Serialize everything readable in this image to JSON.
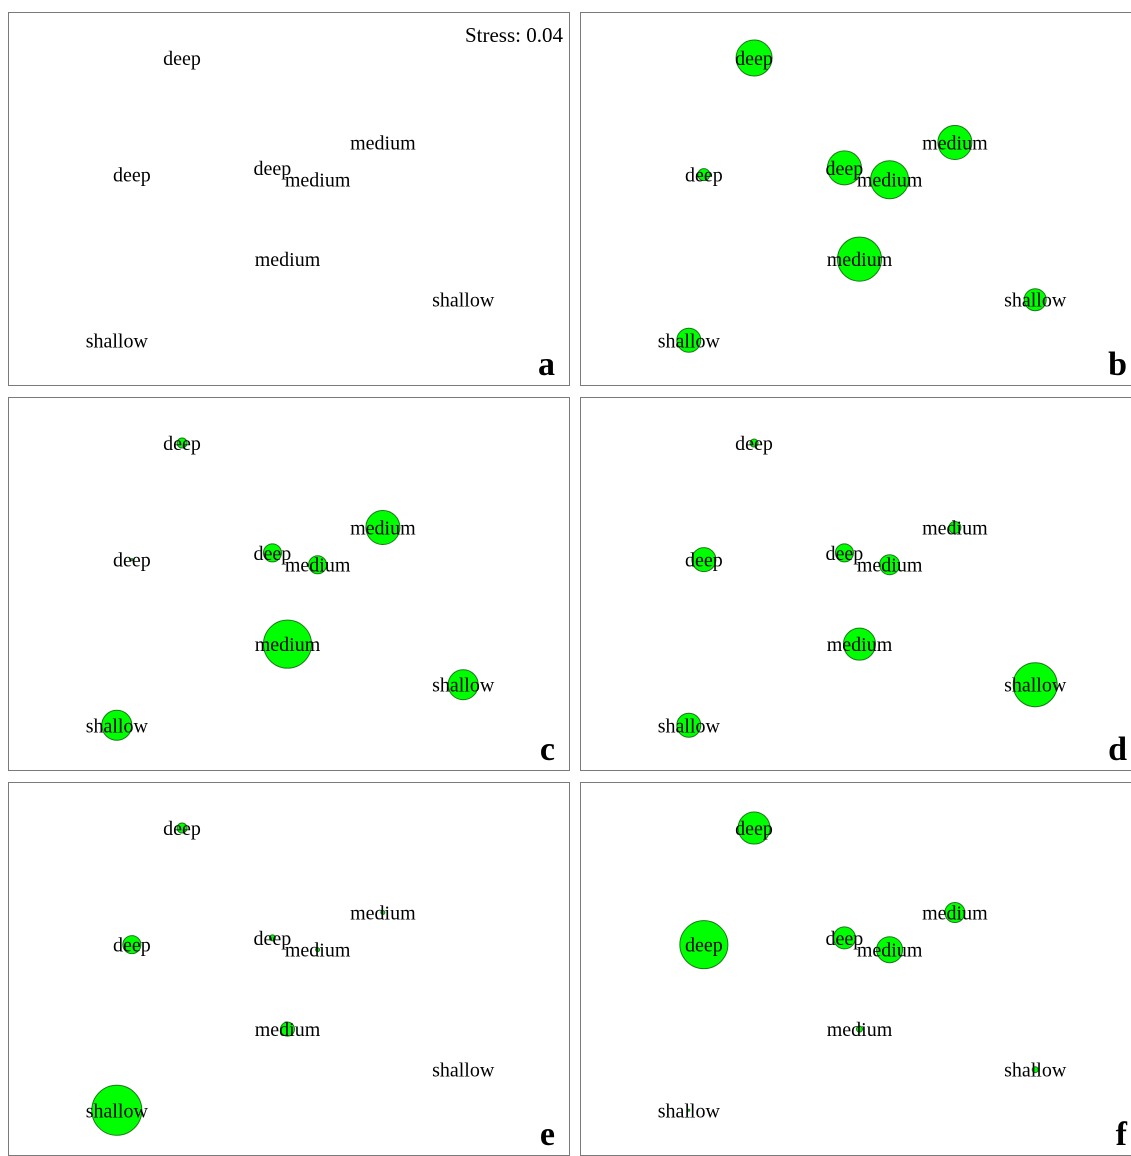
{
  "stress_label": "Stress: 0.04",
  "colors": {
    "bubble": "#00ff00",
    "bubble_stroke": "#1a7a1a",
    "frame": "#7a7a7a"
  },
  "chart_data": {
    "type": "scatter",
    "title": "",
    "xlabel": "",
    "ylabel": "",
    "grid": false,
    "xlim": [
      0,
      100
    ],
    "ylim": [
      0,
      100
    ],
    "points": [
      {
        "label": "deep",
        "x": 28.5,
        "y": 92
      },
      {
        "label": "deep",
        "x": 18.5,
        "y": 57.5
      },
      {
        "label": "deep",
        "x": 46.5,
        "y": 59.5
      },
      {
        "label": "medium",
        "x": 55.5,
        "y": 56
      },
      {
        "label": "medium",
        "x": 68.5,
        "y": 67
      },
      {
        "label": "medium",
        "x": 49.5,
        "y": 32.5
      },
      {
        "label": "shallow",
        "x": 84.5,
        "y": 20.5
      },
      {
        "label": "shallow",
        "x": 15.5,
        "y": 8.5
      }
    ],
    "panels": [
      {
        "letter": "a",
        "show_stress": true,
        "bubble_sizes": [
          0,
          0,
          0,
          0,
          0,
          0,
          0,
          0
        ]
      },
      {
        "letter": "b",
        "show_stress": false,
        "bubble_sizes": [
          18,
          6,
          17,
          19,
          17,
          22,
          11,
          12
        ]
      },
      {
        "letter": "c",
        "show_stress": false,
        "bubble_sizes": [
          5,
          1,
          9,
          9,
          17,
          24,
          15,
          15
        ]
      },
      {
        "letter": "d",
        "show_stress": false,
        "bubble_sizes": [
          4,
          12,
          9,
          10,
          6,
          16,
          22,
          12
        ]
      },
      {
        "letter": "e",
        "show_stress": false,
        "bubble_sizes": [
          5,
          9,
          3,
          2,
          2,
          7,
          0,
          25
        ]
      },
      {
        "letter": "f",
        "show_stress": false,
        "bubble_sizes": [
          16,
          24,
          11,
          13,
          10,
          3,
          3,
          1
        ]
      }
    ]
  }
}
